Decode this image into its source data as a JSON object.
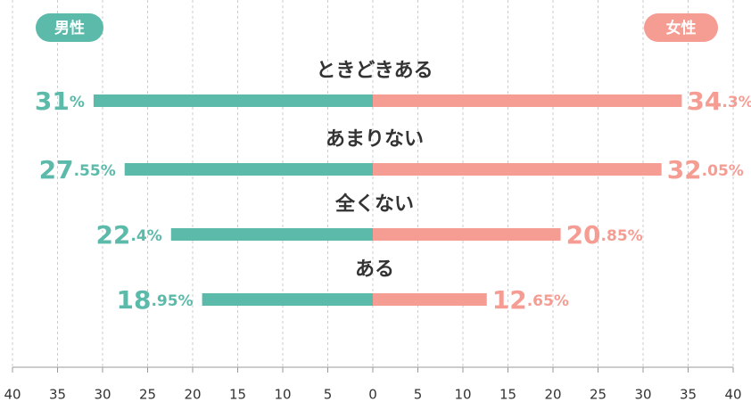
{
  "chart_data": {
    "type": "butterfly-bar",
    "categories": [
      "ときどきある",
      "あまりない",
      "全くない",
      "ある"
    ],
    "series": [
      {
        "name": "男性",
        "color": "#5bbaa9",
        "direction": "left",
        "values": [
          31,
          27.55,
          22.4,
          18.95
        ],
        "value_labels": [
          "31%",
          "27.55%",
          "22.4%",
          "18.95%"
        ]
      },
      {
        "name": "女性",
        "color": "#f59c93",
        "direction": "right",
        "values": [
          34.3,
          32.05,
          20.85,
          12.65
        ],
        "value_labels": [
          "34.3%",
          "32.05%",
          "20.85%",
          "12.65%"
        ]
      }
    ],
    "xlim": [
      -40,
      40
    ],
    "xticks": [
      {
        "value": -40,
        "label": "40"
      },
      {
        "value": -35,
        "label": "35"
      },
      {
        "value": -30,
        "label": "30"
      },
      {
        "value": -25,
        "label": "25"
      },
      {
        "value": -20,
        "label": "20"
      },
      {
        "value": -15,
        "label": "15"
      },
      {
        "value": -10,
        "label": "10"
      },
      {
        "value": -5,
        "label": "5"
      },
      0,
      5,
      10,
      15,
      20,
      25,
      30,
      35,
      40
    ],
    "grid": true
  }
}
